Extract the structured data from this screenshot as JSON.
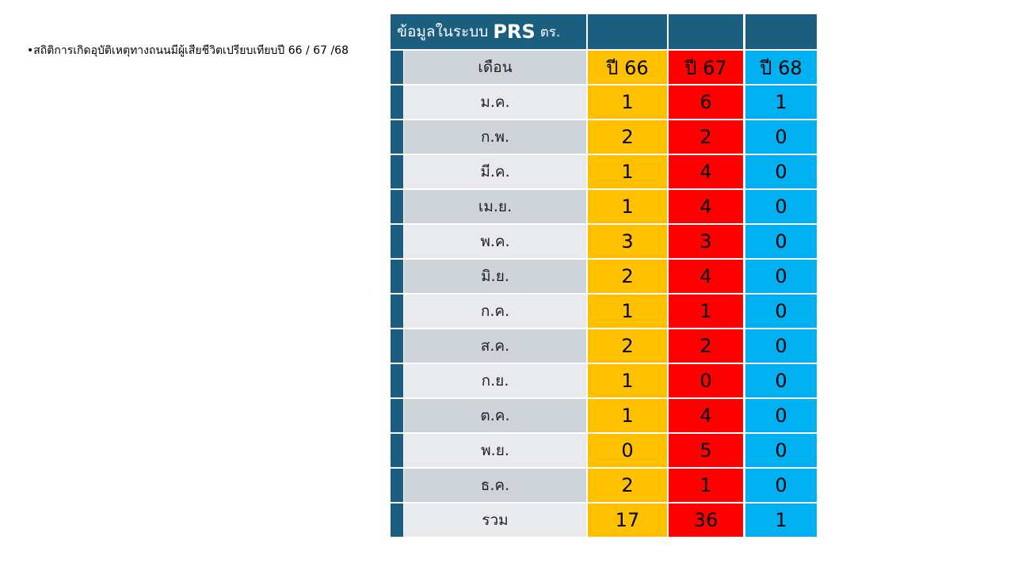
{
  "bullet_text": "สถิติการเกิดอุบัติเหตุทางถนนมีผู้เสียชีวิตเปรียบเทียบปี 66 / 67 /68",
  "table": {
    "title_parts": [
      "ข้อมูลในระบบ",
      "PRS",
      "ตร."
    ],
    "columns": [
      "เดือน",
      "ปี 66",
      "ปี 67",
      "ปี 68"
    ],
    "rows": [
      [
        "ม.ค.",
        1,
        6,
        1
      ],
      [
        "ก.พ.",
        2,
        2,
        0
      ],
      [
        "มี.ค.",
        1,
        4,
        0
      ],
      [
        "เม.ย.",
        1,
        4,
        0
      ],
      [
        "พ.ค.",
        3,
        3,
        0
      ],
      [
        "มิ.ย.",
        2,
        4,
        0
      ],
      [
        "ก.ค.",
        1,
        1,
        0
      ],
      [
        "ส.ค.",
        2,
        2,
        0
      ],
      [
        "ก.ย.",
        1,
        0,
        0
      ],
      [
        "ต.ค.",
        1,
        4,
        0
      ],
      [
        "พ.ย.",
        0,
        5,
        0
      ],
      [
        "ธ.ค.",
        2,
        1,
        0
      ],
      [
        "รวม",
        17,
        36,
        1
      ]
    ]
  }
}
